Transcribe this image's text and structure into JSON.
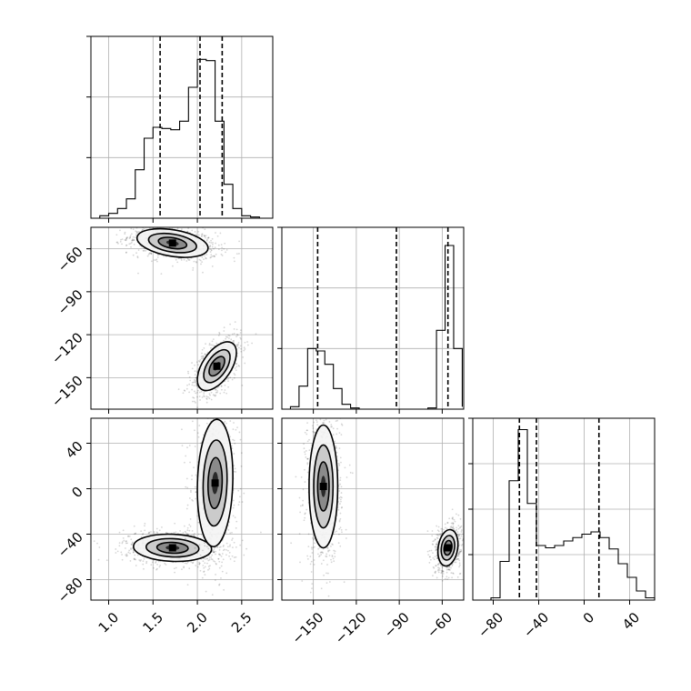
{
  "chart_data": {
    "type": "corner",
    "grid": true,
    "colors": {
      "points": "#000000",
      "contour_line": "#000000",
      "grid": "#b0b0b0",
      "background": "#ffffff"
    },
    "parameters": [
      {
        "range": [
          0.8,
          2.85
        ],
        "ticks": [
          1.0,
          1.5,
          2.0,
          2.5
        ],
        "tick_labels": [
          "1.0",
          "1.5",
          "2.0",
          "2.5"
        ]
      },
      {
        "range": [
          -172,
          -45
        ],
        "ticks": [
          -150,
          -120,
          -90,
          -60
        ],
        "tick_labels": [
          "−150",
          "−120",
          "−90",
          "−60"
        ]
      },
      {
        "range": [
          -98,
          62
        ],
        "ticks": [
          -80,
          -40,
          0,
          40
        ],
        "tick_labels": [
          "−80",
          "−40",
          "0",
          "40"
        ]
      }
    ],
    "diagonal": [
      {
        "param": 0,
        "bins": [
          0.8,
          0.9,
          1.0,
          1.1,
          1.2,
          1.3,
          1.4,
          1.5,
          1.6,
          1.7,
          1.8,
          1.9,
          2.0,
          2.1,
          2.2,
          2.3,
          2.4,
          2.5,
          2.6,
          2.7,
          2.8
        ],
        "counts": [
          0,
          2,
          4,
          8,
          16,
          40,
          66,
          75,
          74,
          73,
          80,
          108,
          131,
          130,
          80,
          28,
          8,
          2,
          1,
          0
        ],
        "ylim": [
          0,
          150
        ],
        "yticks": [
          50,
          100,
          150
        ],
        "quantiles": [
          1.58,
          2.03,
          2.28
        ]
      },
      {
        "param": 1,
        "bins": [
          -172,
          -166,
          -160,
          -154,
          -148,
          -142,
          -136,
          -130,
          -124,
          -118,
          -112,
          -106,
          -100,
          -94,
          -88,
          -82,
          -76,
          -70,
          -64,
          -58,
          -52,
          -46
        ],
        "counts": [
          0,
          4,
          38,
          100,
          96,
          74,
          34,
          8,
          2,
          0,
          0,
          0,
          0,
          0,
          0,
          0,
          0,
          2,
          130,
          270,
          100,
          4
        ],
        "ylim": [
          0,
          300
        ],
        "yticks": [
          100,
          200,
          300
        ],
        "quantiles": [
          -147,
          -92,
          -56
        ]
      },
      {
        "param": 2,
        "bins": [
          -98,
          -90,
          -82,
          -74,
          -66,
          -58,
          -50,
          -42,
          -34,
          -26,
          -18,
          -10,
          -2,
          6,
          14,
          22,
          30,
          38,
          46,
          54,
          62
        ],
        "counts": [
          0,
          0,
          2,
          34,
          105,
          150,
          85,
          48,
          46,
          48,
          52,
          55,
          58,
          60,
          55,
          45,
          32,
          20,
          8,
          2
        ],
        "ylim": [
          0,
          160
        ],
        "yticks": [
          40,
          80,
          120,
          160
        ],
        "quantiles": [
          -57,
          -42,
          13
        ]
      }
    ],
    "pairs": [
      {
        "x": 0,
        "y": 1,
        "modes": [
          {
            "mx": 1.72,
            "my": -56,
            "sx": 0.2,
            "sy": 5,
            "rho": -0.35,
            "weight": 0.55
          },
          {
            "mx": 2.22,
            "my": -142,
            "sx": 0.11,
            "sy": 8.5,
            "rho": 0.55,
            "weight": 0.45
          }
        ]
      },
      {
        "x": 0,
        "y": 2,
        "modes": [
          {
            "mx": 1.72,
            "my": -52,
            "sx": 0.22,
            "sy": 6,
            "rho": -0.1,
            "weight": 0.5
          },
          {
            "mx": 2.2,
            "my": 5,
            "sx": 0.1,
            "sy": 28,
            "rho": 0.1,
            "weight": 0.5
          }
        ]
      },
      {
        "x": 1,
        "y": 2,
        "modes": [
          {
            "mx": -143,
            "my": 2,
            "sx": 5,
            "sy": 27,
            "rho": 0.0,
            "weight": 0.5
          },
          {
            "mx": -56,
            "my": -52,
            "sx": 3.5,
            "sy": 8,
            "rho": 0.2,
            "weight": 0.5
          }
        ]
      }
    ]
  }
}
